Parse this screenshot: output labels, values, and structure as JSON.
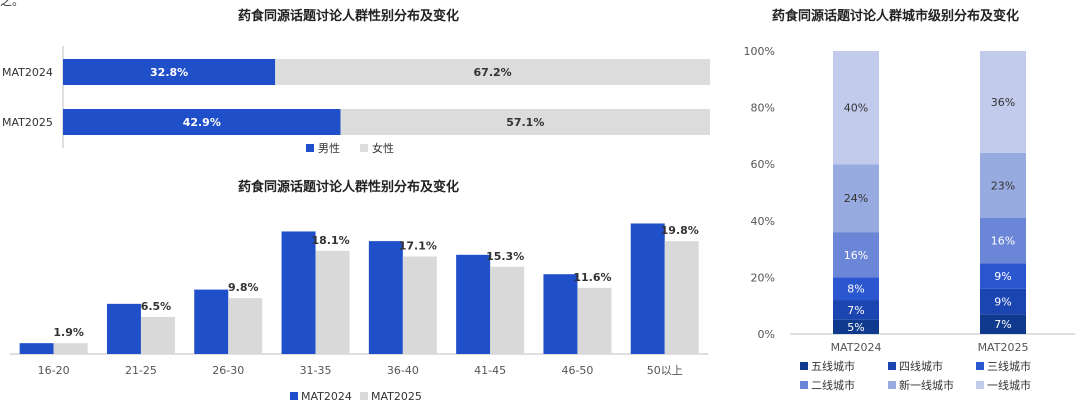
{
  "snippet_text": "之。",
  "colors": {
    "male": "#1f4fc9",
    "female": "#dcdcdc",
    "mat2024": "#1f4fc9",
    "mat2025": "#d9d9d9",
    "tier5": "#0f3a8e",
    "tier4": "#1b45b0",
    "tier3": "#2a56cf",
    "tier2": "#6b86d6",
    "new_tier1": "#98abe1",
    "tier1": "#c2cbec"
  },
  "chart_data": [
    {
      "id": "gender",
      "type": "bar",
      "orientation": "horizontal-stacked-100",
      "title": "药食同源话题讨论人群性别分布及变化",
      "categories": [
        "MAT2024",
        "MAT2025"
      ],
      "series": [
        {
          "name": "男性",
          "values": [
            32.8,
            42.9
          ],
          "labels": [
            "32.8%",
            "42.9%"
          ]
        },
        {
          "name": "女性",
          "values": [
            67.2,
            57.1
          ],
          "labels": [
            "67.2%",
            "57.1%"
          ]
        }
      ],
      "legend_position": "bottom"
    },
    {
      "id": "age",
      "type": "bar",
      "title": "药食同源话题讨论人群性别分布及变化",
      "categories": [
        "16-20",
        "21-25",
        "26-30",
        "31-35",
        "36-40",
        "41-45",
        "46-50",
        "50以上"
      ],
      "series": [
        {
          "name": "MAT2024",
          "values": [
            1.9,
            8.8,
            11.3,
            21.5,
            19.8,
            17.4,
            14.0,
            22.9
          ]
        },
        {
          "name": "MAT2025",
          "values": [
            1.9,
            6.5,
            9.8,
            18.1,
            17.1,
            15.3,
            11.6,
            19.8
          ],
          "labels": [
            "1.9%",
            "6.5%",
            "9.8%",
            "18.1%",
            "17.1%",
            "15.3%",
            "11.6%",
            "19.8%"
          ]
        }
      ],
      "legend_position": "bottom"
    },
    {
      "id": "city",
      "type": "bar",
      "orientation": "vertical-stacked-100",
      "title": "药食同源话题讨论人群城市级别分布及变化",
      "categories": [
        "MAT2024",
        "MAT2025"
      ],
      "y_ticks": [
        "0%",
        "20%",
        "40%",
        "60%",
        "80%",
        "100%"
      ],
      "ylim": [
        0,
        100
      ],
      "series": [
        {
          "name": "五线城市",
          "values": [
            5,
            7
          ],
          "labels": [
            "5%",
            "7%"
          ]
        },
        {
          "name": "四线城市",
          "values": [
            7,
            9
          ],
          "labels": [
            "7%",
            "9%"
          ]
        },
        {
          "name": "三线城市",
          "values": [
            8,
            9
          ],
          "labels": [
            "8%",
            "9%"
          ]
        },
        {
          "name": "二线城市",
          "values": [
            16,
            16
          ],
          "labels": [
            "16%",
            "16%"
          ]
        },
        {
          "name": "新一线城市",
          "values": [
            24,
            23
          ],
          "labels": [
            "24%",
            "23%"
          ]
        },
        {
          "name": "一线城市",
          "values": [
            40,
            36
          ],
          "labels": [
            "40%",
            "36%"
          ]
        }
      ],
      "legend_position": "bottom"
    }
  ]
}
